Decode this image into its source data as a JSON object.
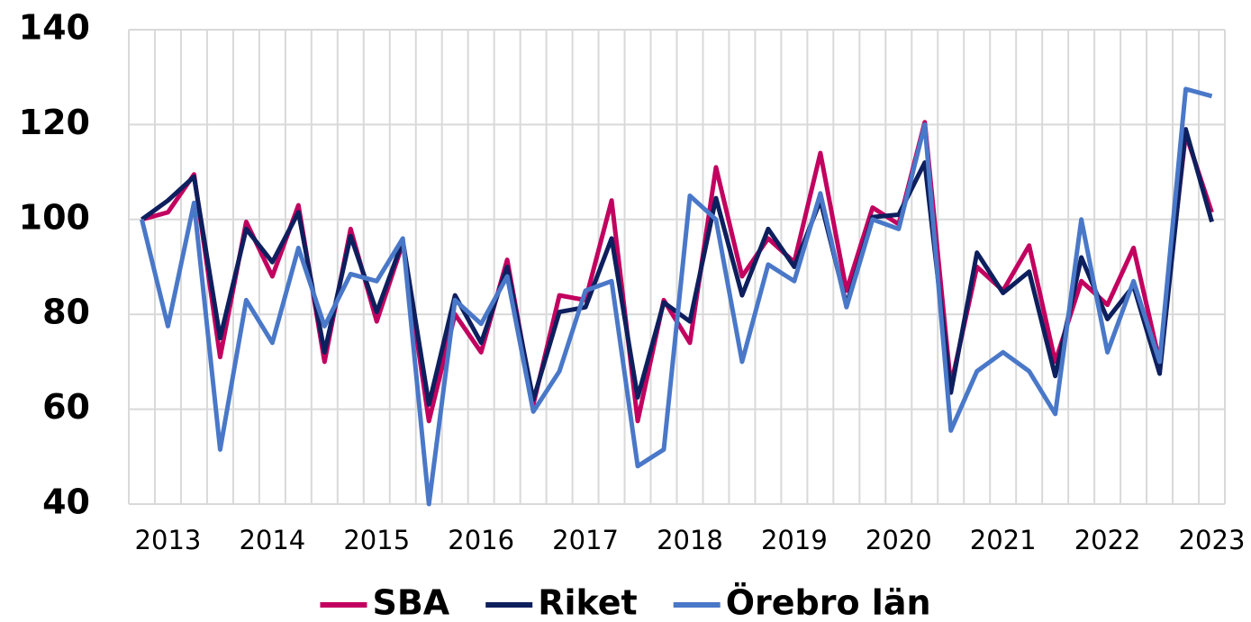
{
  "chart_data": {
    "type": "line",
    "categories": [
      null,
      "2013",
      null,
      null,
      null,
      "2014",
      null,
      null,
      null,
      "2015",
      null,
      null,
      null,
      "2016",
      null,
      null,
      null,
      "2017",
      null,
      null,
      null,
      "2018",
      null,
      null,
      null,
      "2019",
      null,
      null,
      null,
      "2020",
      null,
      null,
      null,
      "2021",
      null,
      null,
      null,
      "2022",
      null,
      null,
      null,
      "2023"
    ],
    "series": [
      {
        "name": "SBA",
        "color": "#c2005f",
        "values": [
          100,
          101.5,
          109.5,
          71,
          99.5,
          88,
          103,
          70,
          98,
          78.5,
          95,
          57.5,
          80,
          72,
          91.5,
          61,
          84,
          83,
          104,
          57.5,
          83,
          74,
          111,
          88,
          96,
          91,
          114,
          85,
          102.5,
          99,
          120.5,
          65,
          90,
          85,
          94.5,
          70,
          87,
          82,
          94,
          70,
          118,
          101.5
        ]
      },
      {
        "name": "Riket",
        "color": "#0e1f5e",
        "values": [
          100,
          104,
          109,
          75,
          98,
          91,
          101.5,
          72,
          96.5,
          80.5,
          95.5,
          61,
          84,
          74,
          90,
          62,
          80.5,
          81.5,
          96,
          62.5,
          82.5,
          78.5,
          104.5,
          84,
          98,
          90,
          104,
          82,
          100.5,
          101,
          112,
          63.5,
          93,
          84.5,
          89,
          67,
          92,
          79,
          86,
          67.5,
          119,
          99.5
        ]
      },
      {
        "name": "Örebro län",
        "color": "#4a78c8",
        "values": [
          100,
          77.5,
          103.5,
          51.5,
          83,
          74,
          94,
          77.5,
          88.5,
          87,
          96,
          40,
          83,
          78,
          88,
          59.5,
          68,
          85,
          87,
          48,
          51.5,
          105,
          100,
          70,
          90.5,
          87,
          105.5,
          81.5,
          100,
          98,
          120,
          55.5,
          68,
          72,
          68,
          59,
          100,
          72,
          87,
          70,
          127.5,
          126
        ]
      }
    ],
    "ylim": [
      40,
      140
    ],
    "yticks": [
      40,
      60,
      80,
      100,
      120,
      140
    ],
    "grid": true,
    "legend": "bottom"
  }
}
